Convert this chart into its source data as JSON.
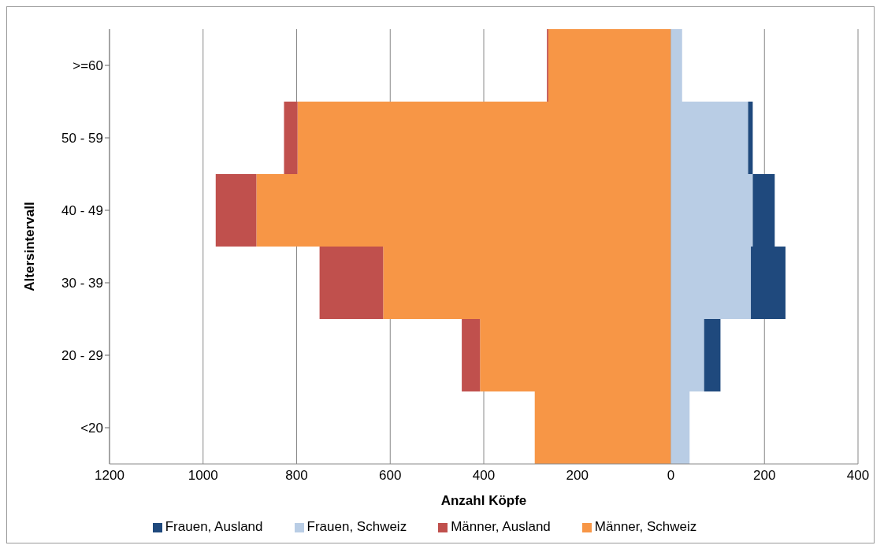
{
  "chart_data": {
    "type": "bar",
    "orientation": "horizontal",
    "stacked": true,
    "xlabel": "Anzahl Köpfe",
    "ylabel": "Altersintervall",
    "categories": [
      ">=60",
      "50 - 59",
      "40 - 49",
      "30 - 39",
      "20 - 29",
      "<20"
    ],
    "series": [
      {
        "name": "Männer, Schweiz",
        "color": "#f79646",
        "values": [
          -262,
          -798,
          -886,
          -615,
          -408,
          -291
        ]
      },
      {
        "name": "Männer, Ausland",
        "color": "#c0504d",
        "values": [
          -3,
          -29,
          -87,
          -136,
          -39,
          0
        ]
      },
      {
        "name": "Frauen, Schweiz",
        "color": "#b9cde5",
        "values": [
          24,
          165,
          175,
          171,
          71,
          40
        ]
      },
      {
        "name": "Frauen, Ausland",
        "color": "#1f497d",
        "values": [
          0,
          10,
          47,
          74,
          35,
          0
        ]
      }
    ],
    "xlim": [
      -1200,
      400
    ],
    "xticks": [
      {
        "value": -1200,
        "label": "1200"
      },
      {
        "value": -1000,
        "label": "1000"
      },
      {
        "value": -800,
        "label": "800"
      },
      {
        "value": -600,
        "label": "600"
      },
      {
        "value": -400,
        "label": "400"
      },
      {
        "value": -200,
        "label": "200"
      },
      0,
      200,
      400
    ],
    "grid": "x",
    "legend": "bottom"
  }
}
